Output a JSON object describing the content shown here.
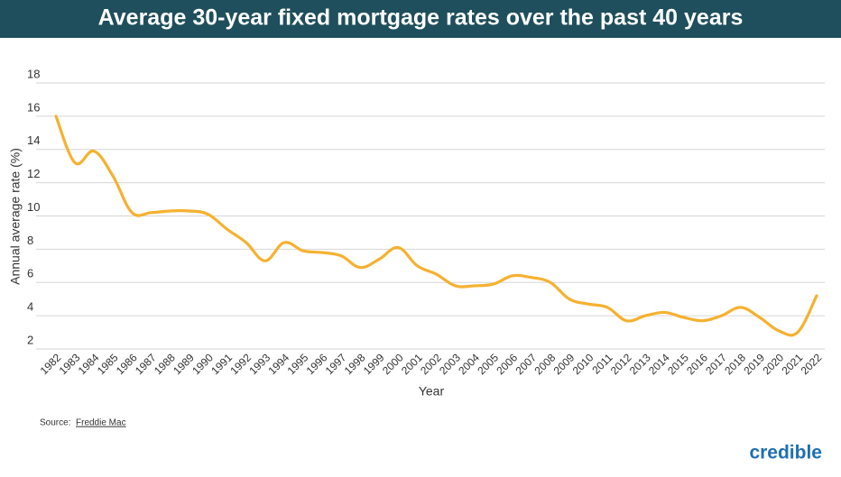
{
  "chart_data": {
    "type": "line",
    "title": "Average 30-year fixed mortgage rates over the past 40 years",
    "x_label": "Year",
    "y_label": "Annual average rate (%)",
    "source_prefix": "Source:",
    "source_link": "Freddie Mac",
    "brand": "credible",
    "categories": [
      "1982",
      "1983",
      "1984",
      "1985",
      "1986",
      "1987",
      "1988",
      "1989",
      "1990",
      "1991",
      "1992",
      "1993",
      "1994",
      "1995",
      "1996",
      "1997",
      "1998",
      "1999",
      "2000",
      "2001",
      "2002",
      "2003",
      "2004",
      "2005",
      "2006",
      "2007",
      "2008",
      "2009",
      "2010",
      "2011",
      "2012",
      "2013",
      "2014",
      "2015",
      "2016",
      "2017",
      "2018",
      "2019",
      "2020",
      "2021",
      "2022"
    ],
    "series": [
      {
        "name": "Annual average rate",
        "color": "#f5b130",
        "values": [
          16.0,
          13.2,
          13.9,
          12.4,
          10.2,
          10.2,
          10.3,
          10.3,
          10.1,
          9.2,
          8.4,
          7.3,
          8.4,
          7.9,
          7.8,
          7.6,
          6.9,
          7.4,
          8.1,
          7.0,
          6.5,
          5.8,
          5.8,
          5.9,
          6.4,
          6.3,
          6.0,
          5.0,
          4.7,
          4.5,
          3.7,
          4.0,
          4.2,
          3.9,
          3.7,
          4.0,
          4.5,
          3.9,
          3.1,
          3.0,
          5.2
        ]
      }
    ],
    "ylim": [
      2,
      18
    ],
    "yticks": [
      2,
      4,
      6,
      8,
      10,
      12,
      14,
      16,
      18
    ],
    "grid": true
  }
}
